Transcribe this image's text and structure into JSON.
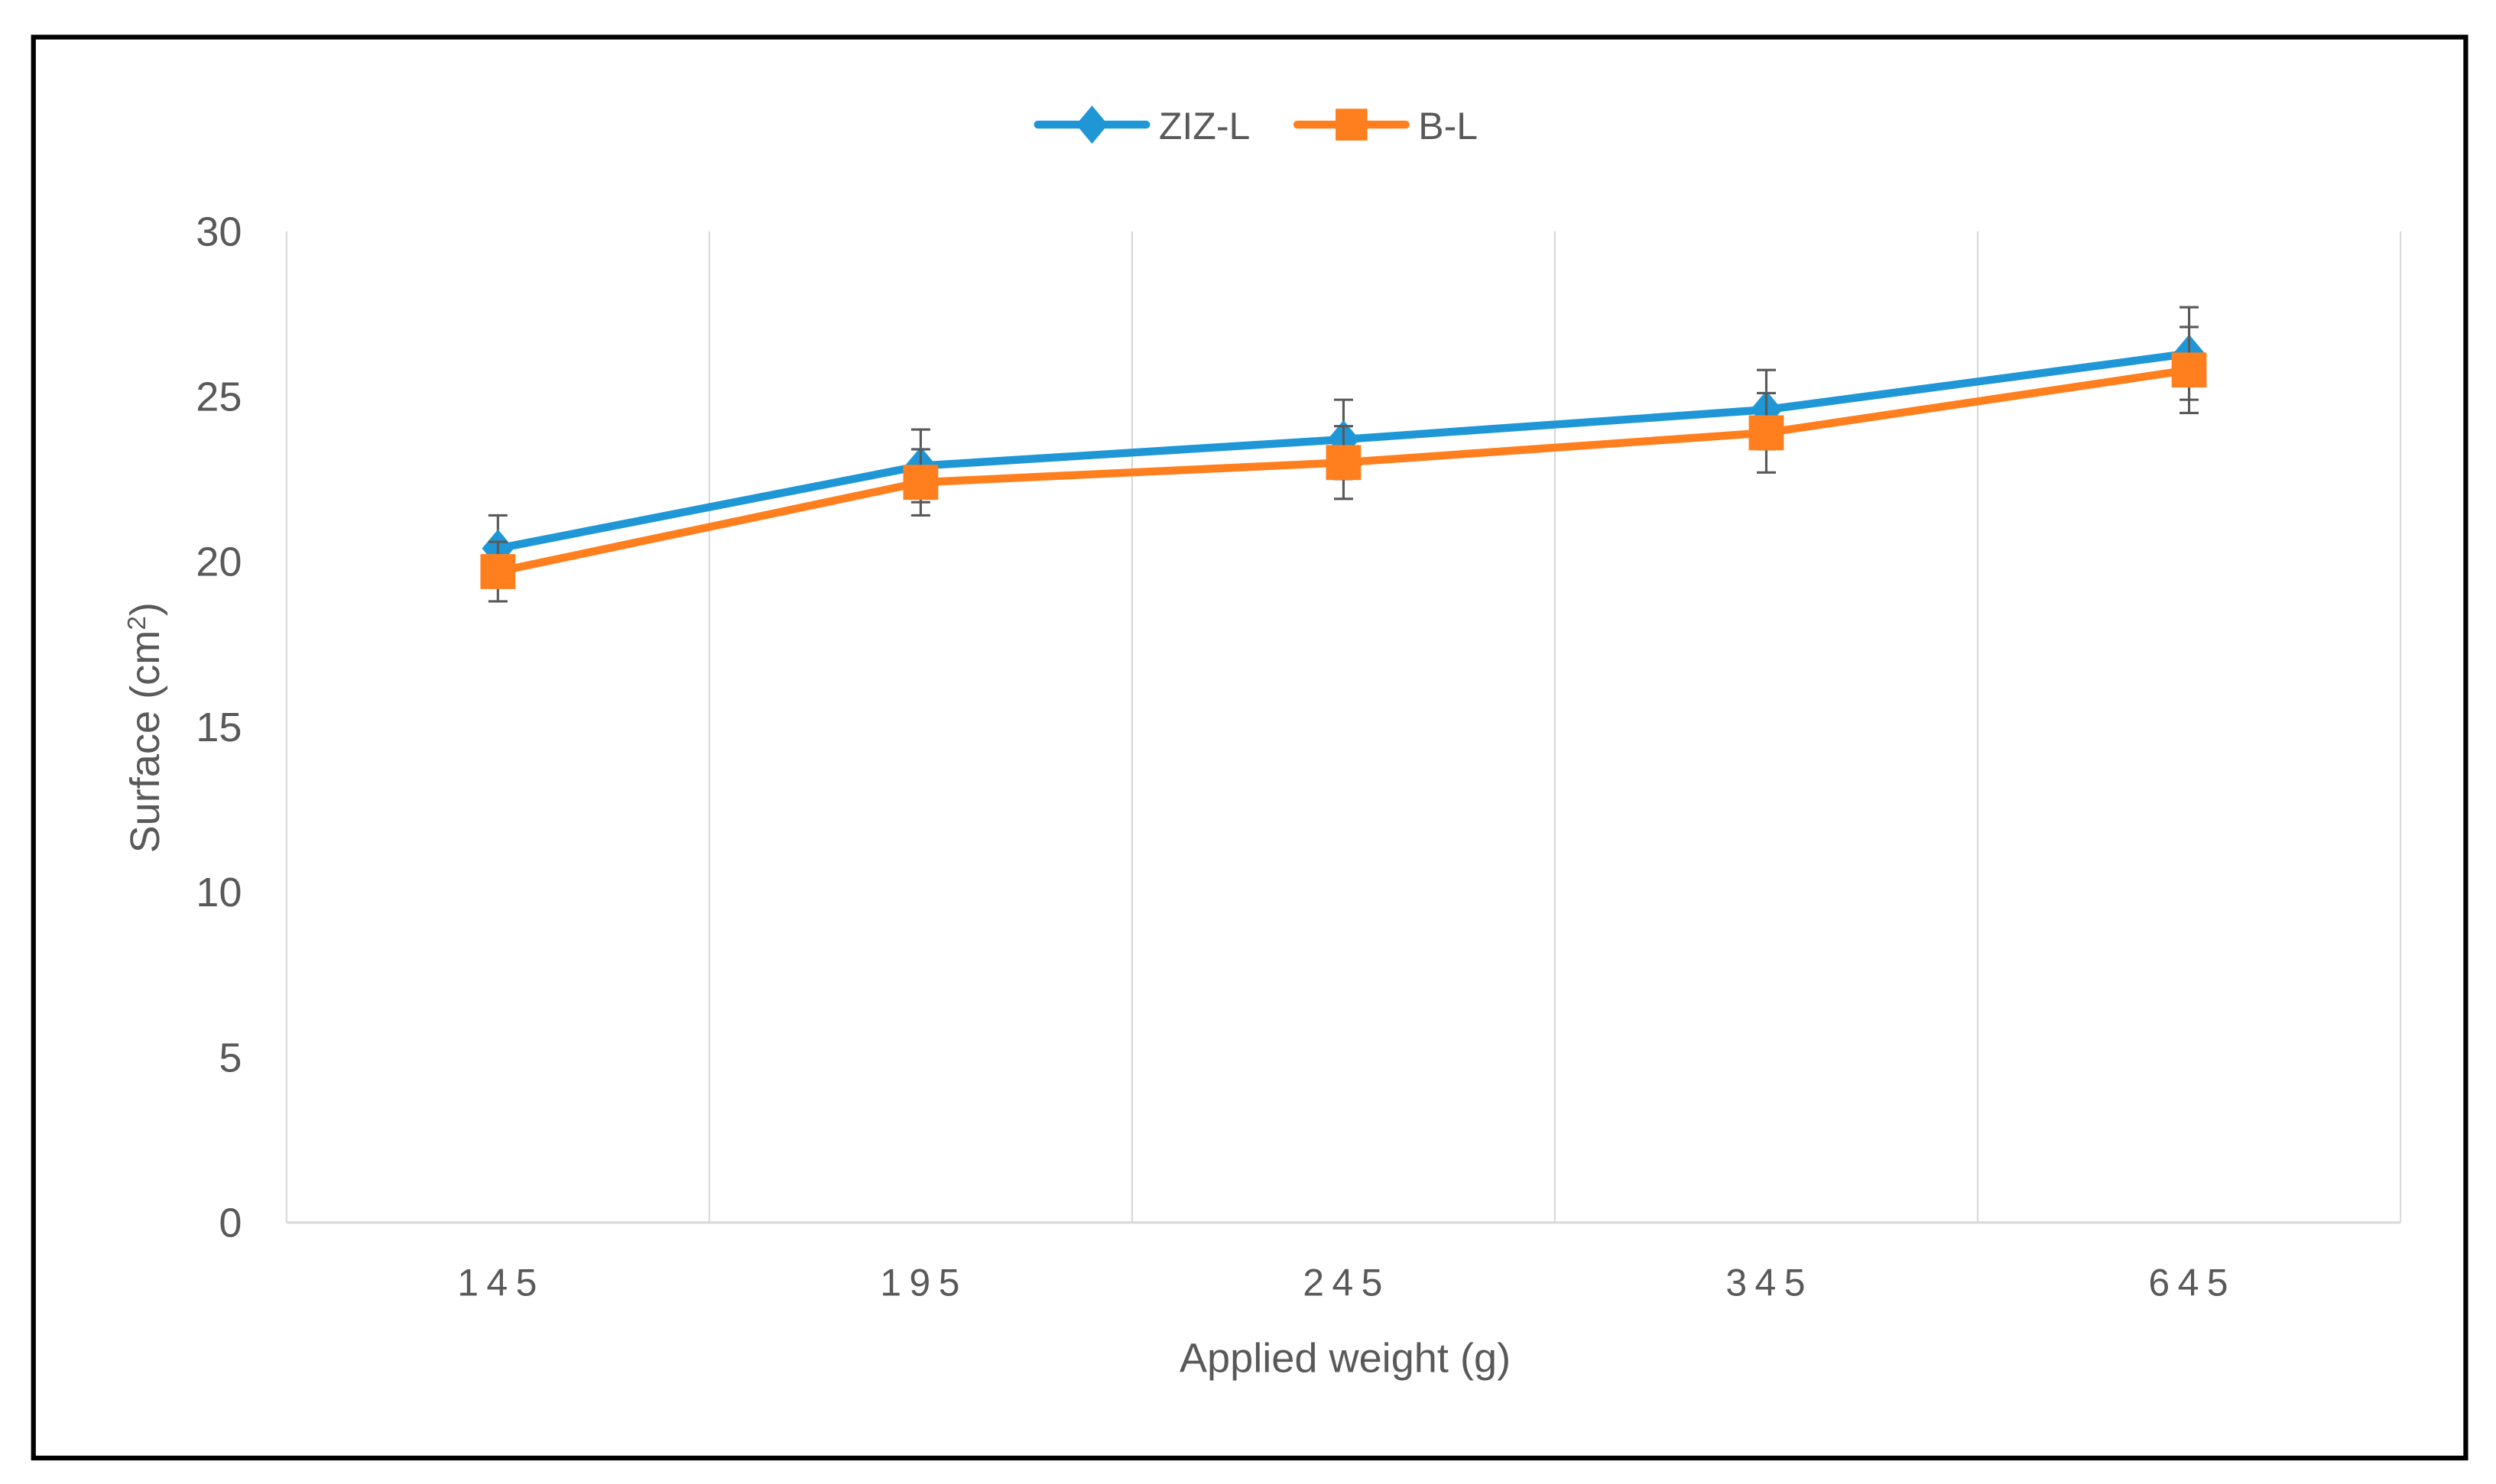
{
  "chart_data": {
    "type": "line",
    "title": "",
    "xlabel": "Applied weight (g)",
    "ylabel": "Surface (cm²)",
    "ylabel_parts": {
      "base": "Surface (cm",
      "sup": "2",
      "close": ")"
    },
    "categories": [
      "145",
      "195",
      "245",
      "345",
      "645"
    ],
    "ylim": [
      0,
      30
    ],
    "yticks": [
      0,
      5,
      10,
      15,
      20,
      25,
      30
    ],
    "grid": "vertical",
    "legend_position": "top",
    "error_bars": true,
    "series": [
      {
        "name": "ZIZ-L",
        "color": "#1F97D6",
        "marker": "diamond",
        "values": [
          20.4,
          22.9,
          23.7,
          24.6,
          26.3
        ],
        "errors": [
          1.0,
          1.1,
          1.2,
          1.2,
          1.4
        ]
      },
      {
        "name": "B-L",
        "color": "#FF7F1F",
        "marker": "square",
        "values": [
          19.7,
          22.4,
          23.0,
          23.9,
          25.8
        ],
        "errors": [
          0.9,
          1.0,
          1.1,
          1.2,
          1.3
        ]
      }
    ]
  }
}
